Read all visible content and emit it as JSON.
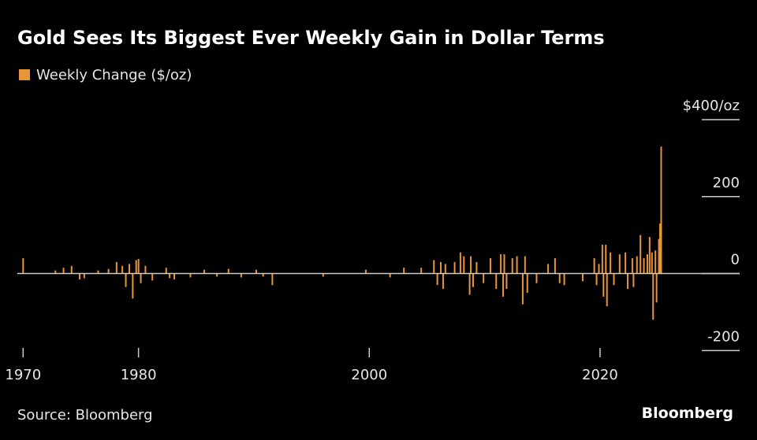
{
  "chart_data": {
    "type": "bar",
    "title": "Gold Sees Its Biggest Ever Weekly Gain in Dollar Terms",
    "legend": "Weekly Change ($/oz)",
    "source": "Source: Bloomberg",
    "brand": "Bloomberg",
    "color": "#e8953a",
    "x": [
      1970.0,
      1972.8,
      1973.5,
      1974.2,
      1974.9,
      1975.3,
      1976.5,
      1977.4,
      1978.1,
      1978.6,
      1978.9,
      1979.2,
      1979.5,
      1979.8,
      1980.0,
      1980.2,
      1980.6,
      1981.2,
      1982.4,
      1982.7,
      1983.1,
      1984.5,
      1985.7,
      1986.8,
      1987.8,
      1988.9,
      1990.2,
      1990.8,
      1991.6,
      1996.0,
      1999.7,
      2001.8,
      2003.0,
      2004.5,
      2005.6,
      2005.9,
      2006.2,
      2006.4,
      2006.6,
      2007.4,
      2007.9,
      2008.2,
      2008.7,
      2008.8,
      2009.0,
      2009.3,
      2009.9,
      2010.5,
      2011.0,
      2011.4,
      2011.6,
      2011.7,
      2011.9,
      2012.4,
      2012.8,
      2013.3,
      2013.5,
      2013.7,
      2014.5,
      2015.5,
      2016.1,
      2016.5,
      2016.9,
      2018.5,
      2019.5,
      2019.7,
      2019.9,
      2020.2,
      2020.3,
      2020.5,
      2020.6,
      2020.9,
      2021.2,
      2021.7,
      2022.2,
      2022.4,
      2022.8,
      2022.9,
      2023.2,
      2023.5,
      2023.8,
      2024.1,
      2024.3,
      2024.5,
      2024.6,
      2024.8,
      2024.9,
      2025.1,
      2025.2,
      2025.3
    ],
    "values": [
      40,
      8,
      15,
      20,
      -15,
      -12,
      8,
      12,
      30,
      20,
      -35,
      25,
      -65,
      35,
      38,
      -25,
      20,
      -18,
      15,
      -12,
      -15,
      -10,
      10,
      -8,
      12,
      -10,
      10,
      -8,
      -30,
      -8,
      10,
      -10,
      15,
      15,
      35,
      -30,
      30,
      -40,
      25,
      30,
      55,
      45,
      -55,
      45,
      -35,
      30,
      -25,
      40,
      -40,
      50,
      -60,
      50,
      -40,
      40,
      45,
      -80,
      45,
      -50,
      -25,
      25,
      40,
      -25,
      -30,
      -20,
      40,
      -30,
      25,
      75,
      -60,
      75,
      -85,
      55,
      -30,
      50,
      55,
      -40,
      40,
      -35,
      45,
      100,
      40,
      50,
      95,
      55,
      -120,
      60,
      -75,
      90,
      130,
      330
    ],
    "xlim": [
      1969.5,
      2032.1
    ],
    "xticks": [
      1970,
      1980,
      2000,
      2020
    ],
    "ylim": [
      -230,
      400
    ],
    "yticks": [
      {
        "value": 400,
        "label": "$400/oz"
      },
      200,
      0,
      -200
    ]
  }
}
